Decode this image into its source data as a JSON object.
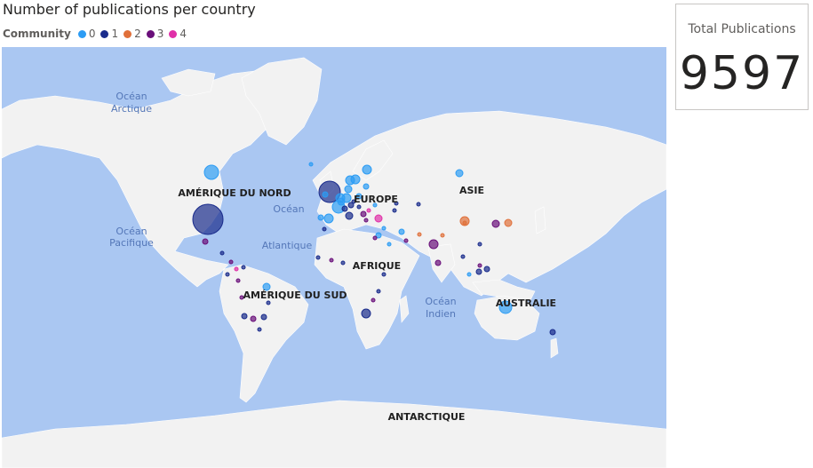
{
  "map": {
    "title": "Number of publications per country",
    "legend_title": "Community",
    "legend": [
      {
        "label": "0",
        "color": "#2c9cf4"
      },
      {
        "label": "1",
        "color": "#1a2c8c"
      },
      {
        "label": "2",
        "color": "#e0703a"
      },
      {
        "label": "3",
        "color": "#6a0f7a"
      },
      {
        "label": "4",
        "color": "#e030a8"
      }
    ],
    "colors": {
      "ocean": "#aac7f2",
      "land": "#f2f2f2"
    },
    "ocean_labels": [
      {
        "line1": "Océan",
        "line2": "Arctique"
      },
      {
        "line1": "Océan",
        "line2": "Pacifique"
      },
      {
        "line1": "Océan",
        "line2": "Atlantique"
      },
      {
        "line1": "Océan",
        "line2": "Indien"
      }
    ],
    "continent_labels": [
      "AMÉRIQUE DU NORD",
      "EUROPE",
      "ASIE",
      "AFRIQUE",
      "AMÉRIQUE DU SUD",
      "AUSTRALIE",
      "ANTARCTIQUE"
    ]
  },
  "card": {
    "label": "Total Publications",
    "value": "9597"
  }
}
